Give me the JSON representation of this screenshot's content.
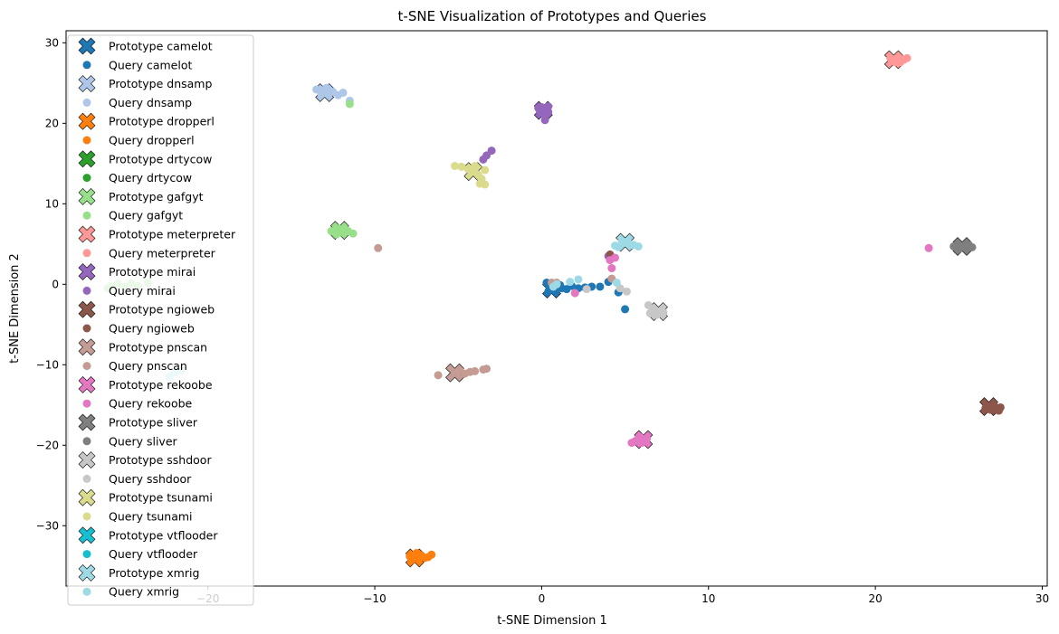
{
  "chart_data": {
    "type": "scatter",
    "title": "t-SNE Visualization of Prototypes and Queries",
    "xlabel": "t-SNE Dimension 1",
    "ylabel": "t-SNE Dimension 2",
    "xlim": [
      -28.5,
      30.3
    ],
    "ylim": [
      -37.5,
      31.5
    ],
    "xticks": [
      -20,
      -10,
      0,
      10,
      20,
      30
    ],
    "yticks": [
      -30,
      -20,
      -10,
      0,
      10,
      20,
      30
    ],
    "grid": false,
    "legend_position": "upper-left",
    "families": [
      {
        "name": "camelot",
        "color": "#1f77b4",
        "prototype": [
          0.6,
          -0.6
        ],
        "queries": [
          [
            0.3,
            0.2
          ],
          [
            0.5,
            -0.4
          ],
          [
            0.9,
            -0.2
          ],
          [
            1.2,
            -0.5
          ],
          [
            1.5,
            -0.6
          ],
          [
            1.8,
            -0.2
          ],
          [
            2.2,
            -0.5
          ],
          [
            2.6,
            -0.4
          ],
          [
            3.0,
            -0.3
          ],
          [
            3.5,
            -0.3
          ],
          [
            4.0,
            0.3
          ],
          [
            4.6,
            -1.0
          ],
          [
            5.0,
            -3.1
          ],
          [
            0.8,
            -0.8
          ],
          [
            1.1,
            -0.1
          ],
          [
            0.4,
            -0.9
          ]
        ]
      },
      {
        "name": "dnsamp",
        "color": "#aec7e8",
        "prototype": [
          -13.0,
          23.8
        ],
        "queries": [
          [
            -13.5,
            24.2
          ],
          [
            -13.2,
            23.6
          ],
          [
            -12.8,
            24.2
          ],
          [
            -12.5,
            23.9
          ],
          [
            -12.2,
            23.5
          ],
          [
            -11.9,
            23.8
          ],
          [
            -12.9,
            24.4
          ],
          [
            -11.5,
            22.8
          ]
        ]
      },
      {
        "name": "dropperl",
        "color": "#ff7f0e",
        "prototype": [
          -7.6,
          -34.0
        ],
        "queries": [
          [
            -7.9,
            -33.8
          ],
          [
            -7.4,
            -34.2
          ],
          [
            -7.2,
            -33.7
          ],
          [
            -7.0,
            -34.0
          ],
          [
            -6.8,
            -33.9
          ],
          [
            -6.6,
            -33.6
          ],
          [
            -7.5,
            -33.4
          ],
          [
            -7.8,
            -34.3
          ]
        ]
      },
      {
        "name": "drtycow",
        "color": "#2ca02c",
        "prototype": null,
        "queries": []
      },
      {
        "name": "gafgyt",
        "color": "#98df8a",
        "prototype": [
          -12.1,
          6.7
        ],
        "queries": [
          [
            -12.6,
            6.6
          ],
          [
            -12.2,
            6.9
          ],
          [
            -11.9,
            6.4
          ],
          [
            -11.6,
            6.6
          ],
          [
            -11.3,
            6.3
          ],
          [
            -12.3,
            6.2
          ],
          [
            -11.8,
            6.9
          ],
          [
            -11.5,
            22.4
          ],
          [
            -25.8,
            -0.2
          ],
          [
            -25.4,
            0.1
          ],
          [
            -25.0,
            -0.3
          ],
          [
            -24.6,
            0.1
          ],
          [
            -24.2,
            -0.2
          ],
          [
            -23.6,
            0.2
          ],
          [
            -26.0,
            -0.5
          ]
        ]
      },
      {
        "name": "meterpreter",
        "color": "#ff9896",
        "prototype": [
          21.1,
          27.9
        ],
        "queries": [
          [
            21.4,
            28.2
          ],
          [
            21.7,
            27.9
          ],
          [
            21.5,
            27.6
          ],
          [
            20.9,
            28.1
          ],
          [
            21.2,
            27.6
          ],
          [
            21.9,
            28.1
          ]
        ]
      },
      {
        "name": "mirai",
        "color": "#9467bd",
        "prototype": [
          0.1,
          21.6
        ],
        "queries": [
          [
            0.0,
            22.0
          ],
          [
            0.3,
            21.8
          ],
          [
            0.4,
            21.4
          ],
          [
            -0.1,
            21.5
          ],
          [
            0.2,
            21.0
          ],
          [
            0.2,
            20.4
          ],
          [
            0.4,
            22.1
          ],
          [
            -0.2,
            21.9
          ],
          [
            -3.0,
            16.6
          ],
          [
            -3.3,
            16.0
          ],
          [
            -3.5,
            15.5
          ],
          [
            4.0,
            3.5
          ],
          [
            4.1,
            3.2
          ]
        ]
      },
      {
        "name": "ngioweb",
        "color": "#8c564b",
        "prototype": [
          26.8,
          -15.2
        ],
        "queries": [
          [
            27.2,
            -15.5
          ],
          [
            27.5,
            -15.3
          ],
          [
            26.9,
            -15.6
          ],
          [
            27.1,
            -15.0
          ],
          [
            26.6,
            -15.4
          ],
          [
            27.4,
            -15.7
          ],
          [
            4.1,
            3.7
          ]
        ]
      },
      {
        "name": "pnscan",
        "color": "#c49c94",
        "prototype": [
          -5.2,
          -11.0
        ],
        "queries": [
          [
            -4.9,
            -10.7
          ],
          [
            -4.6,
            -11.1
          ],
          [
            -4.3,
            -10.9
          ],
          [
            -4.0,
            -10.8
          ],
          [
            -3.5,
            -10.6
          ],
          [
            -3.3,
            -10.5
          ],
          [
            -6.2,
            -11.3
          ],
          [
            -9.8,
            4.5
          ],
          [
            0.6,
            0.2
          ],
          [
            0.9,
            0.2
          ],
          [
            4.2,
            0.7
          ]
        ]
      },
      {
        "name": "rekoobe",
        "color": "#e377c2",
        "prototype": [
          6.1,
          -19.3
        ],
        "queries": [
          [
            5.6,
            -19.5
          ],
          [
            5.8,
            -19.1
          ],
          [
            6.0,
            -19.7
          ],
          [
            6.3,
            -19.2
          ],
          [
            5.4,
            -19.7
          ],
          [
            5.9,
            -19.0
          ],
          [
            23.2,
            4.5
          ],
          [
            4.1,
            3.0
          ],
          [
            4.2,
            2.0
          ],
          [
            4.4,
            3.3
          ],
          [
            2.0,
            -1.1
          ]
        ]
      },
      {
        "name": "sliver",
        "color": "#7f7f7f",
        "prototype": [
          25.2,
          4.7
        ],
        "queries": [
          [
            24.9,
            4.9
          ],
          [
            25.4,
            4.5
          ],
          [
            25.6,
            4.9
          ],
          [
            25.0,
            4.4
          ],
          [
            25.8,
            4.6
          ],
          [
            24.7,
            4.7
          ]
        ]
      },
      {
        "name": "sshdoor",
        "color": "#c7c7c7",
        "prototype": [
          7.0,
          -3.4
        ],
        "queries": [
          [
            6.7,
            -3.1
          ],
          [
            6.4,
            -2.6
          ],
          [
            6.9,
            -3.8
          ],
          [
            7.3,
            -3.5
          ],
          [
            6.5,
            -3.6
          ],
          [
            5.1,
            -0.9
          ],
          [
            2.7,
            -0.6
          ],
          [
            4.7,
            -0.5
          ]
        ]
      },
      {
        "name": "tsunami",
        "color": "#dbdb8d",
        "prototype": [
          -4.1,
          14.0
        ],
        "queries": [
          [
            -4.8,
            14.6
          ],
          [
            -4.4,
            14.3
          ],
          [
            -4.0,
            14.7
          ],
          [
            -3.8,
            13.6
          ],
          [
            -3.6,
            13.1
          ],
          [
            -3.4,
            14.2
          ],
          [
            -3.7,
            12.5
          ],
          [
            -3.4,
            12.4
          ],
          [
            -5.2,
            14.7
          ]
        ]
      },
      {
        "name": "vtflooder",
        "color": "#17becf",
        "prototype": null,
        "queries": []
      },
      {
        "name": "xmrig",
        "color": "#9edae5",
        "prototype": [
          5.0,
          5.2
        ],
        "queries": [
          [
            4.4,
            4.8
          ],
          [
            4.8,
            5.4
          ],
          [
            5.2,
            5.1
          ],
          [
            5.5,
            4.9
          ],
          [
            5.8,
            4.7
          ],
          [
            4.6,
            4.6
          ],
          [
            -22.0,
            -11.0
          ],
          [
            -21.6,
            -10.7
          ],
          [
            -22.3,
            -11.5
          ],
          [
            1.7,
            0.3
          ],
          [
            2.2,
            0.6
          ],
          [
            0.7,
            -0.3
          ],
          [
            4.5,
            0.2
          ],
          [
            0.9,
            0.0
          ]
        ]
      }
    ]
  }
}
